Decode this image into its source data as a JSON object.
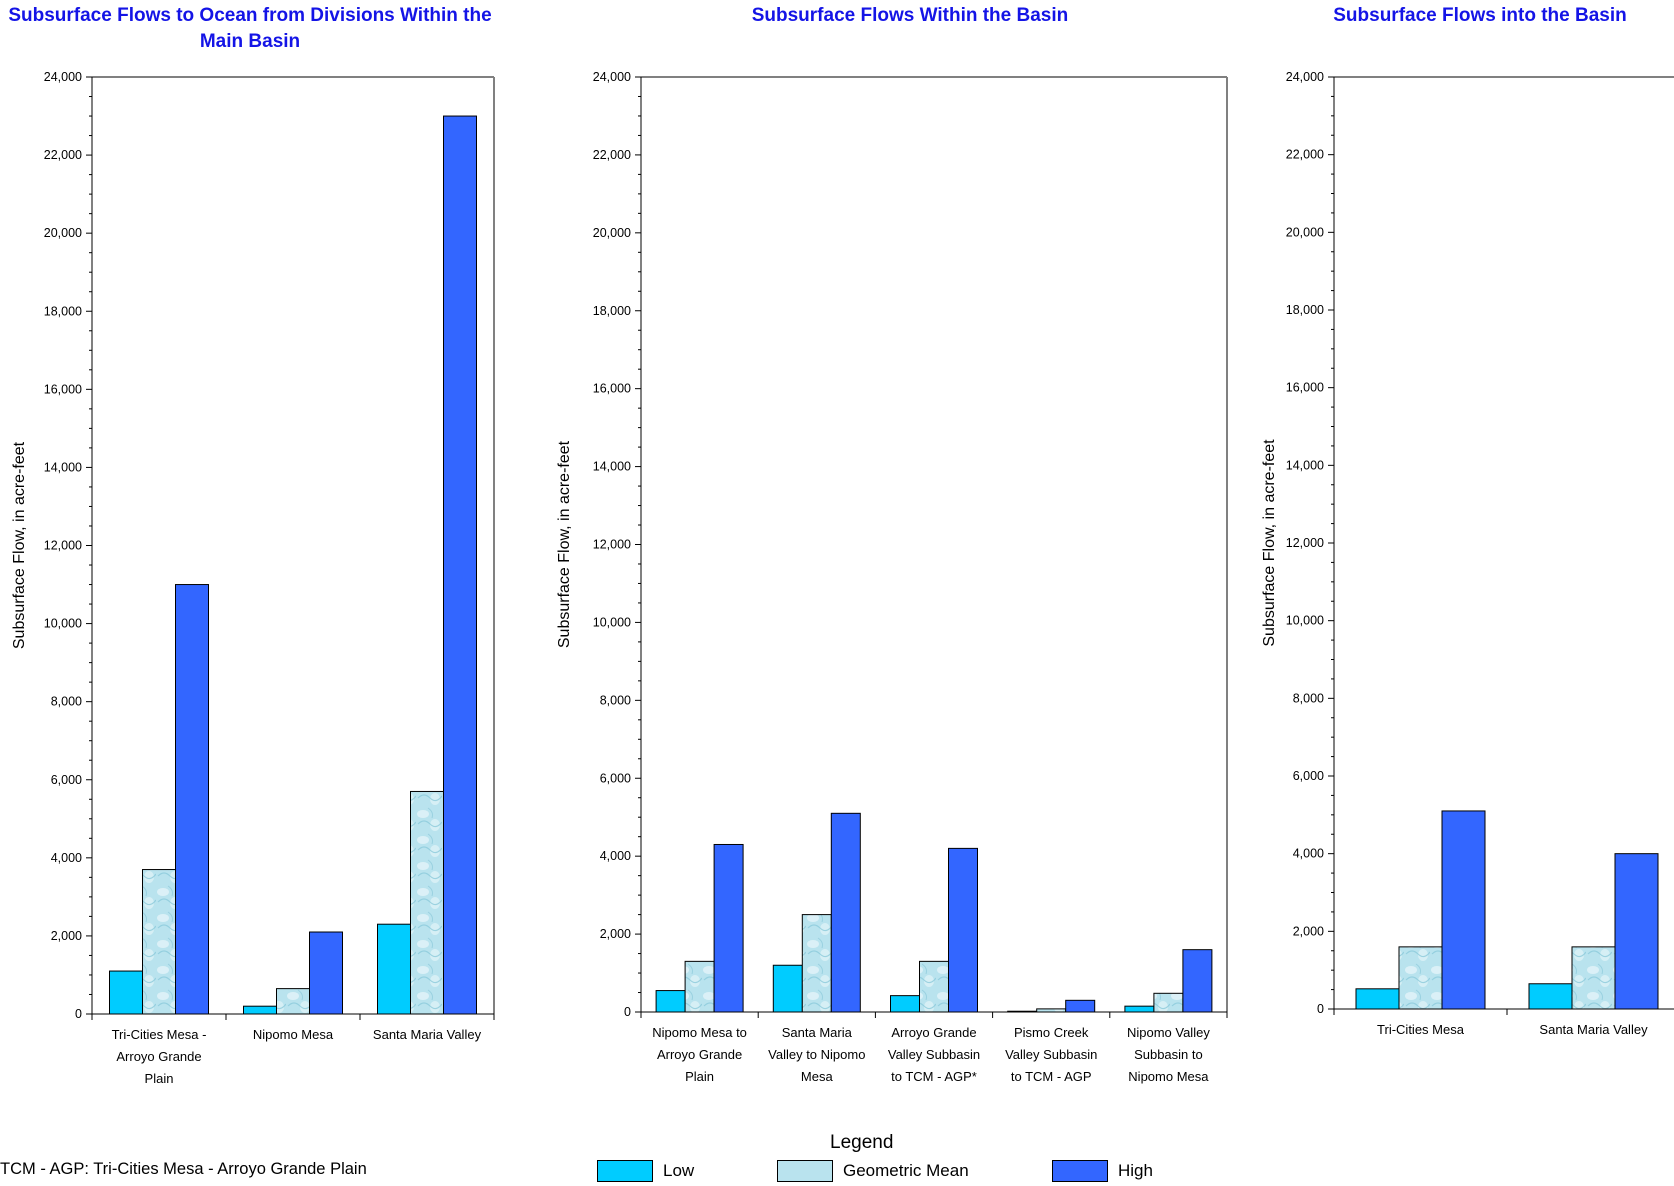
{
  "colors": {
    "low": "#00ccff",
    "geo_base": "#b9e3ee",
    "geo_light": "#e3f4f9",
    "geo_dark": "#8ccadb",
    "high": "#3366ff",
    "title": "#1414e6"
  },
  "chart_data": [
    {
      "type": "bar",
      "title": "Subsurface Flows to Ocean from Divisions Within the Main Basin",
      "ylabel": "Subsurface Flow, in acre-feet",
      "ylim": [
        0,
        24000
      ],
      "yticks": [
        "0",
        "2,000",
        "4,000",
        "6,000",
        "8,000",
        "10,000",
        "12,000",
        "14,000",
        "16,000",
        "18,000",
        "20,000",
        "22,000",
        "24,000"
      ],
      "categories": [
        "Tri-Cities Mesa - Arroyo Grande Plain",
        "Nipomo Mesa",
        "Santa Maria Valley"
      ],
      "category_lines": [
        [
          "Tri-Cities Mesa -",
          "Arroyo Grande",
          "Plain"
        ],
        [
          "Nipomo Mesa"
        ],
        [
          "Santa Maria Valley"
        ]
      ],
      "series": [
        {
          "name": "Low",
          "values": [
            1100,
            200,
            2300
          ]
        },
        {
          "name": "Geometric Mean",
          "values": [
            3700,
            650,
            5700
          ]
        },
        {
          "name": "High",
          "values": [
            11000,
            2100,
            23000
          ]
        }
      ]
    },
    {
      "type": "bar",
      "title": "Subsurface Flows Within the Basin",
      "ylabel": "Subsurface Flow, in acre-feet",
      "ylim": [
        0,
        24000
      ],
      "yticks": [
        "0",
        "2,000",
        "4,000",
        "6,000",
        "8,000",
        "10,000",
        "12,000",
        "14,000",
        "16,000",
        "18,000",
        "20,000",
        "22,000",
        "24,000"
      ],
      "categories": [
        "Nipomo Mesa to Arroyo Grande Plain",
        "Santa Maria Valley to Nipomo Mesa",
        "Arroyo Grande Valley Subbasin to TCM - AGP*",
        "Pismo Creek Valley Subbasin to TCM - AGP",
        "Nipomo Valley Subbasin to Nipomo Mesa"
      ],
      "category_lines": [
        [
          "Nipomo Mesa to",
          "Arroyo Grande",
          "Plain"
        ],
        [
          "Santa Maria",
          "Valley to Nipomo",
          "Mesa"
        ],
        [
          "Arroyo Grande",
          "Valley Subbasin",
          "to TCM - AGP*"
        ],
        [
          "Pismo Creek",
          "Valley Subbasin",
          "to TCM - AGP"
        ],
        [
          "Nipomo Valley",
          "Subbasin to",
          "Nipomo Mesa"
        ]
      ],
      "series": [
        {
          "name": "Low",
          "values": [
            550,
            1200,
            420,
            20,
            150
          ]
        },
        {
          "name": "Geometric Mean",
          "values": [
            1300,
            2500,
            1300,
            80,
            480
          ]
        },
        {
          "name": "High",
          "values": [
            4300,
            5100,
            4200,
            300,
            1600
          ]
        }
      ]
    },
    {
      "type": "bar",
      "title": "Subsurface Flows into the Basin",
      "ylabel": "Subsurface Flow, in acre-feet",
      "ylim": [
        0,
        24000
      ],
      "yticks": [
        "0",
        "2,000",
        "4,000",
        "6,000",
        "8,000",
        "10,000",
        "12,000",
        "14,000",
        "16,000",
        "18,000",
        "20,000",
        "22,000",
        "24,000"
      ],
      "categories": [
        "Tri-Cities Mesa",
        "Santa Maria Valley"
      ],
      "category_lines": [
        [
          "Tri-Cities Mesa"
        ],
        [
          "Santa Maria Valley"
        ]
      ],
      "series": [
        {
          "name": "Low",
          "values": [
            520,
            650
          ]
        },
        {
          "name": "Geometric Mean",
          "values": [
            1600,
            1600
          ]
        },
        {
          "name": "High",
          "values": [
            5100,
            4000
          ]
        }
      ]
    }
  ],
  "footnote": "TCM - AGP: Tri-Cities Mesa - Arroyo Grande Plain",
  "legend": {
    "title": "Legend",
    "items": [
      {
        "label": "Low"
      },
      {
        "label": "Geometric Mean"
      },
      {
        "label": "High"
      }
    ]
  }
}
